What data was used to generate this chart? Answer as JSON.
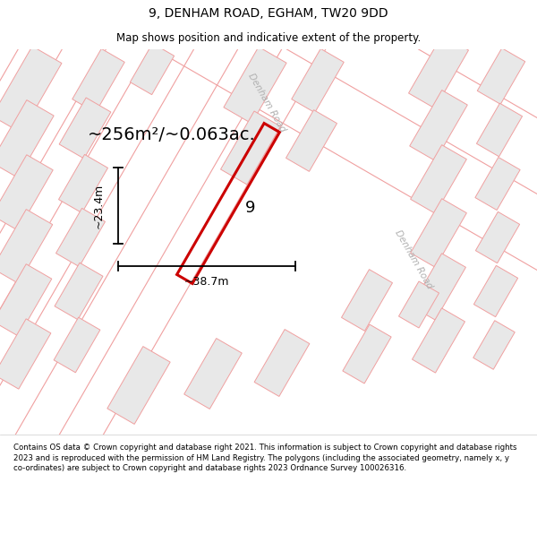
{
  "title": "9, DENHAM ROAD, EGHAM, TW20 9DD",
  "subtitle": "Map shows position and indicative extent of the property.",
  "area_text": "~256m²/~0.063ac.",
  "width_label": "~38.7m",
  "height_label": "~23.4m",
  "property_number": "9",
  "footer": "Contains OS data © Crown copyright and database right 2021. This information is subject to Crown copyright and database rights 2023 and is reproduced with the permission of HM Land Registry. The polygons (including the associated geometry, namely x, y co-ordinates) are subject to Crown copyright and database rights 2023 Ordnance Survey 100026316.",
  "map_bg": "#ffffff",
  "road_line_color": "#f0a0a0",
  "building_fill": "#e8e8e8",
  "building_edge": "#f0a0a0",
  "property_color": "#cc0000",
  "road_label_color": "#b0b0b0",
  "title_color": "#000000",
  "footer_color": "#000000",
  "figsize": [
    6.0,
    6.25
  ],
  "dpi": 100,
  "title_fontsize": 10,
  "subtitle_fontsize": 8.5,
  "area_fontsize": 14,
  "dim_fontsize": 9,
  "footer_fontsize": 6.2,
  "road_label_fontsize": 7.5,
  "property_label_fontsize": 13
}
